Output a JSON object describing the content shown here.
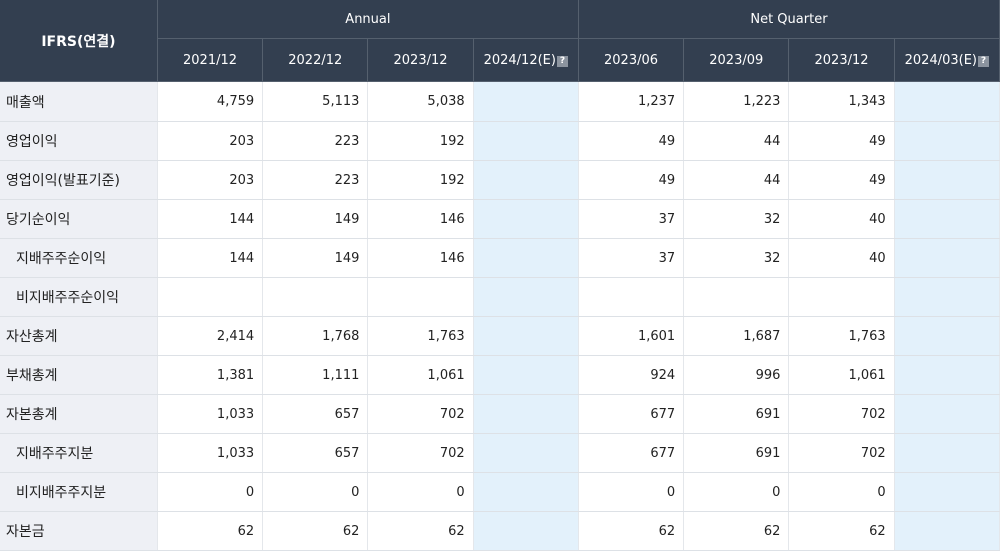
{
  "header": {
    "ifrs_label": "IFRS(연결)",
    "annual_label": "Annual",
    "quarter_label": "Net Quarter",
    "annual_periods": [
      "2021/12",
      "2022/12",
      "2023/12",
      "2024/12(E)"
    ],
    "quarter_periods": [
      "2023/06",
      "2023/09",
      "2023/12",
      "2024/03(E)"
    ],
    "help_icon_glyph": "?"
  },
  "rows": [
    {
      "label": "매출액",
      "annual": [
        "4,759",
        "5,113",
        "5,038",
        ""
      ],
      "quarter": [
        "1,237",
        "1,223",
        "1,343",
        ""
      ]
    },
    {
      "label": "영업이익",
      "annual": [
        "203",
        "223",
        "192",
        ""
      ],
      "quarter": [
        "49",
        "44",
        "49",
        ""
      ]
    },
    {
      "label": "영업이익(발표기준)",
      "annual": [
        "203",
        "223",
        "192",
        ""
      ],
      "quarter": [
        "49",
        "44",
        "49",
        ""
      ]
    },
    {
      "label": "당기순이익",
      "annual": [
        "144",
        "149",
        "146",
        ""
      ],
      "quarter": [
        "37",
        "32",
        "40",
        ""
      ]
    },
    {
      "label": "지배주주순이익",
      "annual": [
        "144",
        "149",
        "146",
        ""
      ],
      "quarter": [
        "37",
        "32",
        "40",
        ""
      ]
    },
    {
      "label": "비지배주주순이익",
      "annual": [
        "",
        "",
        "",
        ""
      ],
      "quarter": [
        "",
        "",
        "",
        ""
      ]
    },
    {
      "label": "자산총계",
      "annual": [
        "2,414",
        "1,768",
        "1,763",
        ""
      ],
      "quarter": [
        "1,601",
        "1,687",
        "1,763",
        ""
      ]
    },
    {
      "label": "부채총계",
      "annual": [
        "1,381",
        "1,111",
        "1,061",
        ""
      ],
      "quarter": [
        "924",
        "996",
        "1,061",
        ""
      ]
    },
    {
      "label": "자본총계",
      "annual": [
        "1,033",
        "657",
        "702",
        ""
      ],
      "quarter": [
        "677",
        "691",
        "702",
        ""
      ]
    },
    {
      "label": "지배주주지분",
      "annual": [
        "1,033",
        "657",
        "702",
        ""
      ],
      "quarter": [
        "677",
        "691",
        "702",
        ""
      ]
    },
    {
      "label": "비지배주주지분",
      "annual": [
        "0",
        "0",
        "0",
        ""
      ],
      "quarter": [
        "0",
        "0",
        "0",
        ""
      ]
    },
    {
      "label": "자본금",
      "annual": [
        "62",
        "62",
        "62",
        ""
      ],
      "quarter": [
        "62",
        "62",
        "62",
        ""
      ]
    }
  ],
  "colors": {
    "header_bg": "#333f50",
    "label_bg": "#eef0f5",
    "estimate_bg": "#e3f1fb"
  }
}
